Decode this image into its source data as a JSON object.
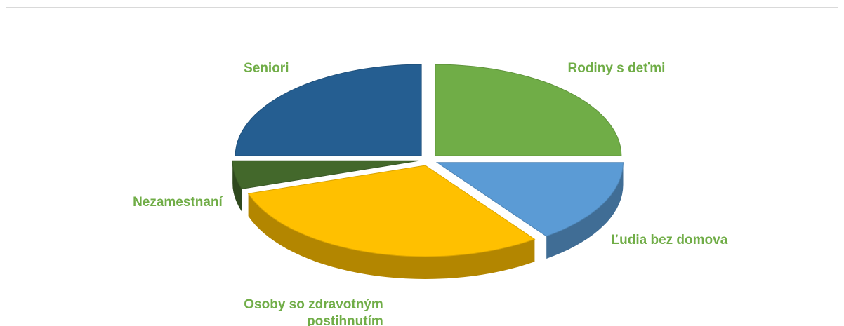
{
  "chart_data": {
    "type": "pie3d",
    "categories": [
      "Rodiny s deťmi",
      "Ľudia bez domova",
      "Osoby so zdravotným postihnutím",
      "Nezamestnaní",
      "Seniori"
    ],
    "values": [
      25,
      15,
      30,
      5,
      25
    ],
    "colors": [
      "#70ad47",
      "#5b9bd5",
      "#ffc000",
      "#43682b",
      "#255e91"
    ],
    "label_color": "#70ad47"
  }
}
